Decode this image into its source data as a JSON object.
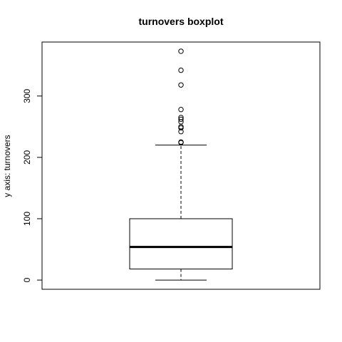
{
  "chart_data": {
    "type": "boxplot",
    "title": "turnovers boxplot",
    "xlabel": "",
    "ylabel": "y axis: turnovers",
    "ylim": [
      -15,
      388
    ],
    "yticks": [
      0,
      100,
      200,
      300
    ],
    "grid": false,
    "legend": "none",
    "box": {
      "whisker_low": 0,
      "q1": 18,
      "median": 54,
      "q3": 100,
      "whisker_high": 220
    },
    "outliers": [
      224,
      225,
      242,
      248,
      250,
      258,
      262,
      265,
      278,
      318,
      342,
      373
    ]
  },
  "colors": {
    "ink": "#000000",
    "background": "#ffffff"
  }
}
